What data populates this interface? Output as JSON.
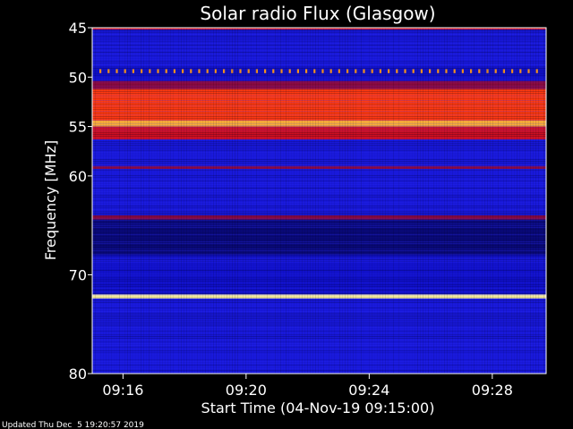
{
  "chart_data": {
    "type": "heatmap",
    "title": "Solar radio Flux (Glasgow)",
    "ylabel": "Frequency [MHz]",
    "xlabel": "Start Time (04-Nov-19 09:15:00)",
    "footer": "Updated Thu Dec  5 19:20:57 2019",
    "y_axis": {
      "min": 45,
      "max": 80,
      "ticks": [
        {
          "value": 45,
          "label": "45"
        },
        {
          "value": 50,
          "label": "50"
        },
        {
          "value": 55,
          "label": "55"
        },
        {
          "value": 60,
          "label": "60"
        },
        {
          "value": 70,
          "label": "70"
        },
        {
          "value": 80,
          "label": "80"
        }
      ]
    },
    "x_axis": {
      "min": "09:15:00",
      "max": "09:29:45",
      "ticks": [
        {
          "value": "09:16",
          "label": "09:16"
        },
        {
          "value": "09:20",
          "label": "09:20"
        },
        {
          "value": "09:24",
          "label": "09:24"
        },
        {
          "value": "09:28",
          "label": "09:28"
        }
      ]
    },
    "colormap": "blue-red-yellow (low to high intensity)",
    "emission_bands": [
      {
        "f_lo": 45.0,
        "f_hi": 45.2,
        "level": "red"
      },
      {
        "f_lo": 45.2,
        "f_hi": 46.5,
        "level": "blue"
      },
      {
        "f_lo": 46.5,
        "f_hi": 49.0,
        "level": "blue"
      },
      {
        "f_lo": 49.2,
        "f_hi": 49.6,
        "level": "orange (intermittent)"
      },
      {
        "f_lo": 50.4,
        "f_hi": 51.2,
        "level": "dark red"
      },
      {
        "f_lo": 51.2,
        "f_hi": 54.4,
        "level": "red-orange"
      },
      {
        "f_lo": 54.4,
        "f_hi": 55.0,
        "level": "orange-yellow"
      },
      {
        "f_lo": 55.0,
        "f_hi": 56.3,
        "level": "red"
      },
      {
        "f_lo": 56.3,
        "f_hi": 59.0,
        "level": "blue"
      },
      {
        "f_lo": 59.0,
        "f_hi": 59.3,
        "level": "dark red"
      },
      {
        "f_lo": 59.3,
        "f_hi": 64.0,
        "level": "blue"
      },
      {
        "f_lo": 64.0,
        "f_hi": 64.4,
        "level": "dark red"
      },
      {
        "f_lo": 64.4,
        "f_hi": 68.0,
        "level": "dark blue"
      },
      {
        "f_lo": 68.2,
        "f_hi": 68.8,
        "level": "blue"
      },
      {
        "f_lo": 72.0,
        "f_hi": 72.4,
        "level": "yellow-white"
      },
      {
        "f_lo": 72.4,
        "f_hi": 80.0,
        "level": "blue"
      }
    ]
  }
}
